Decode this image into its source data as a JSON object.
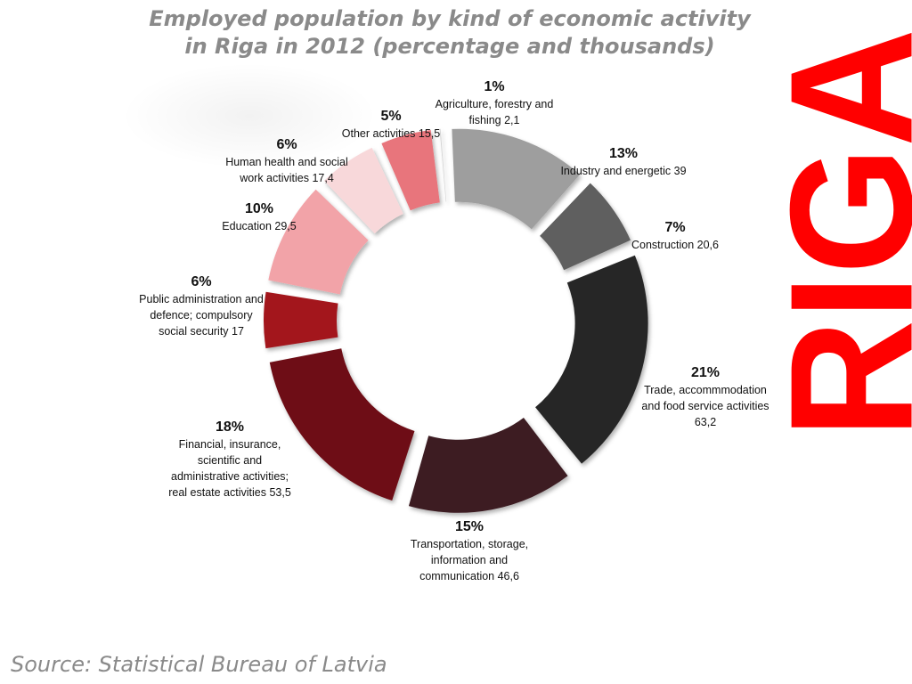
{
  "title": {
    "line1": "Employed population by kind of economic activity",
    "line2": "in Riga in 2012 (percentage and thousands)"
  },
  "brand": {
    "text": "RIGA",
    "color": "#ff0000"
  },
  "source": "Source: Statistical Bureau of Latvia",
  "chart_data": {
    "type": "pie",
    "variant": "exploded-donut",
    "title": "Employed population by kind of economic activity in Riga in 2012 (percentage and thousands)",
    "slices": [
      {
        "pct": "1%",
        "label": [
          "Agriculture, forestry and",
          "fishing 2,1"
        ],
        "value": 2.1,
        "color": "#d4d4d4"
      },
      {
        "pct": "13%",
        "label": [
          "Industry and energetic 39"
        ],
        "value": 39,
        "color": "#9e9e9e"
      },
      {
        "pct": "7%",
        "label": [
          "Construction 20,6"
        ],
        "value": 20.6,
        "color": "#5f5f5f"
      },
      {
        "pct": "21%",
        "label": [
          "Trade, accommmodation",
          "and food service activities",
          "63,2"
        ],
        "value": 63.2,
        "color": "#262626"
      },
      {
        "pct": "15%",
        "label": [
          "Transportation, storage,",
          "information and",
          "communication 46,6"
        ],
        "value": 46.6,
        "color": "#3c1d24"
      },
      {
        "pct": "18%",
        "label": [
          "Financial, insurance,",
          "scientific and",
          "administrative activities;",
          "real estate activities 53,5"
        ],
        "value": 53.5,
        "color": "#6e1016"
      },
      {
        "pct": "6%",
        "label": [
          "Public administration and",
          "defence; compulsory",
          "social security 17"
        ],
        "value": 17,
        "color": "#a3161e"
      },
      {
        "pct": "10%",
        "label": [
          "Education 29,5"
        ],
        "value": 29.5,
        "color": "#f2a3a8"
      },
      {
        "pct": "6%",
        "label": [
          "Human health and social",
          "work activities 17,4"
        ],
        "value": 17.4,
        "color": "#f8d8da"
      },
      {
        "pct": "5%",
        "label": [
          "Other activities 15,5"
        ],
        "value": 15.5,
        "color": "#e8757c"
      }
    ]
  }
}
